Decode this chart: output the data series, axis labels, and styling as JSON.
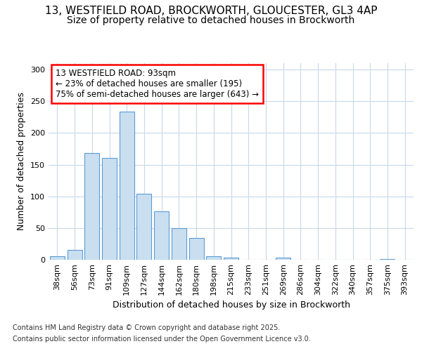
{
  "title_line1": "13, WESTFIELD ROAD, BROCKWORTH, GLOUCESTER, GL3 4AP",
  "title_line2": "Size of property relative to detached houses in Brockworth",
  "xlabel": "Distribution of detached houses by size in Brockworth",
  "ylabel": "Number of detached properties",
  "categories": [
    "38sqm",
    "56sqm",
    "73sqm",
    "91sqm",
    "109sqm",
    "127sqm",
    "144sqm",
    "162sqm",
    "180sqm",
    "198sqm",
    "215sqm",
    "233sqm",
    "251sqm",
    "269sqm",
    "286sqm",
    "304sqm",
    "322sqm",
    "340sqm",
    "357sqm",
    "375sqm",
    "393sqm"
  ],
  "values": [
    6,
    15,
    168,
    160,
    234,
    104,
    76,
    50,
    34,
    5,
    3,
    0,
    0,
    3,
    0,
    0,
    0,
    0,
    0,
    1,
    0
  ],
  "bar_fill_color": "#c9dff0",
  "bar_edge_color": "#5b9bd5",
  "annotation_text_line1": "13 WESTFIELD ROAD: 93sqm",
  "annotation_text_line2": "← 23% of detached houses are smaller (195)",
  "annotation_text_line3": "75% of semi-detached houses are larger (643) →",
  "ylim": [
    0,
    310
  ],
  "yticks": [
    0,
    50,
    100,
    150,
    200,
    250,
    300
  ],
  "bg_color": "#ffffff",
  "plot_bg_color": "#ffffff",
  "grid_color": "#c8d8e8",
  "footer_line1": "Contains HM Land Registry data © Crown copyright and database right 2025.",
  "footer_line2": "Contains public sector information licensed under the Open Government Licence v3.0.",
  "title1_fontsize": 11,
  "title2_fontsize": 10,
  "axis_label_fontsize": 9,
  "tick_fontsize": 8,
  "annotation_fontsize": 8.5,
  "footer_fontsize": 7
}
